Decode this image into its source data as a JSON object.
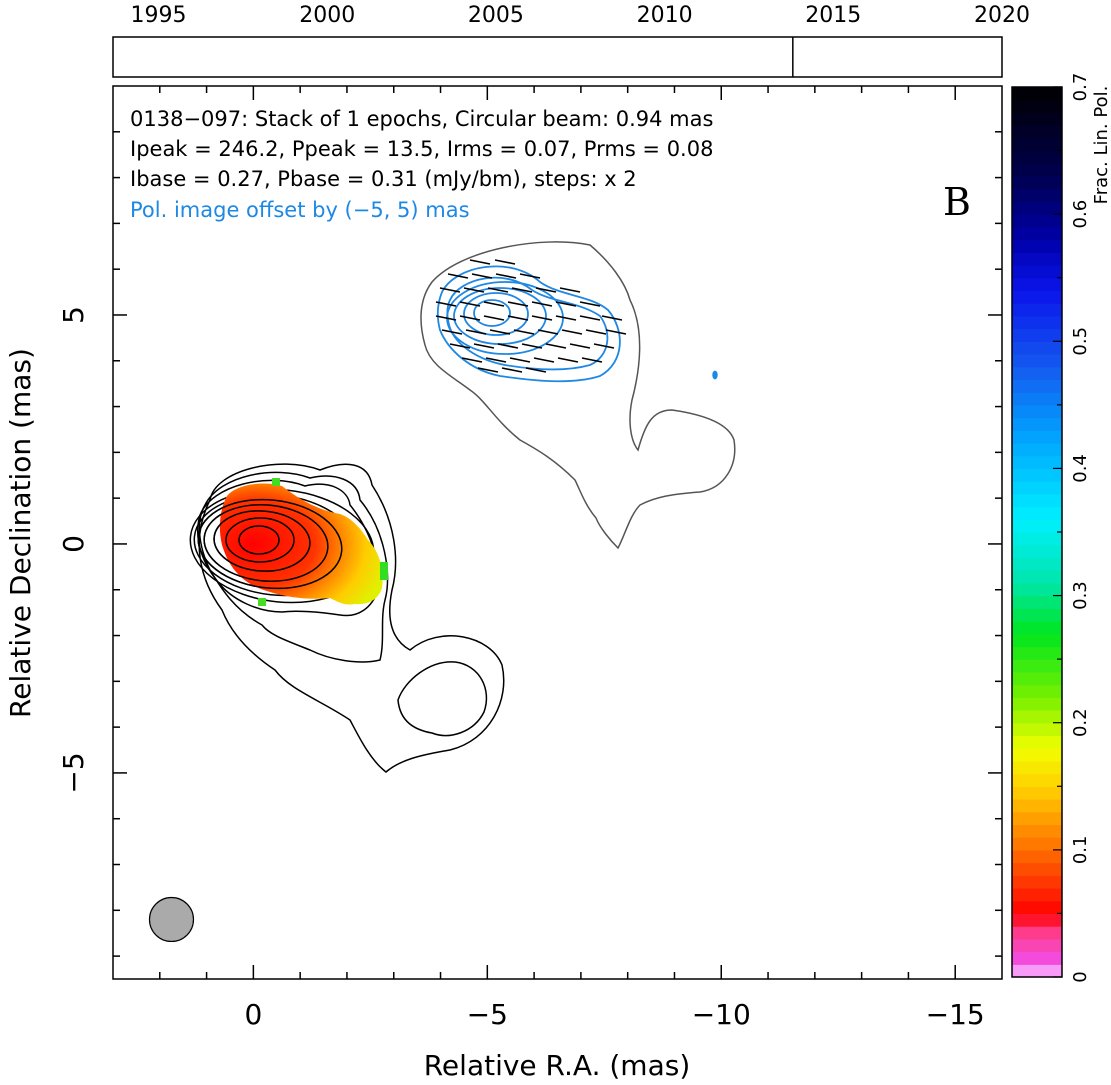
{
  "chart_data": {
    "type": "contour",
    "title": {
      "line1": "0138−097: Stack of 1 epochs, Circular beam: 0.94 mas",
      "line2": "Ipeak = 246.2, Ppeak = 13.5, Irms = 0.07, Prms = 0.08",
      "line3": "Ibase = 0.27, Pbase = 0.31 (mJy/bm), steps: x 2",
      "line4": "Pol. image offset by (−5, 5) mas"
    },
    "panel_label": "B",
    "xlabel": "Relative R.A. (mas)",
    "ylabel": "Relative Declination (mas)",
    "xlim": [
      3.0,
      -16.0
    ],
    "ylim": [
      -9.5,
      10.0
    ],
    "x_ticks": [
      0,
      -5,
      -10,
      -15
    ],
    "x_tick_labels": [
      "0",
      "−5",
      "−10",
      "−15"
    ],
    "y_ticks": [
      -5,
      0,
      5
    ],
    "y_tick_labels": [
      "−5",
      "0",
      "5"
    ],
    "beam_diameter_mas": 0.94,
    "beam_center_mas": [
      1.75,
      -8.2
    ],
    "timeline": {
      "year_range": [
        1993.65,
        2020.0
      ],
      "years": [
        1995,
        2000,
        2005,
        2010,
        2015,
        2020
      ],
      "year_labels": [
        "1995",
        "2000",
        "2005",
        "2010",
        "2015",
        "2020"
      ],
      "epochs": [
        2013.8
      ]
    },
    "colorbar": {
      "label": "Frac. Lin. Pol.",
      "range": [
        0.0,
        0.7
      ],
      "ticks": [
        0,
        0.1,
        0.2,
        0.3,
        0.4,
        0.5,
        0.6,
        0.7
      ],
      "tick_labels": [
        "0",
        "0.1",
        "0.2",
        "0.3",
        "0.4",
        "0.5",
        "0.6",
        "0.7"
      ]
    },
    "colors": {
      "stokes_i_contour": "#000000",
      "pol_contour": "#1e88e5",
      "outer_contour": "#555555",
      "evpa_vectors": "#000000",
      "beam": "#aaaaaa",
      "pol_note": "#1e88e5"
    }
  }
}
